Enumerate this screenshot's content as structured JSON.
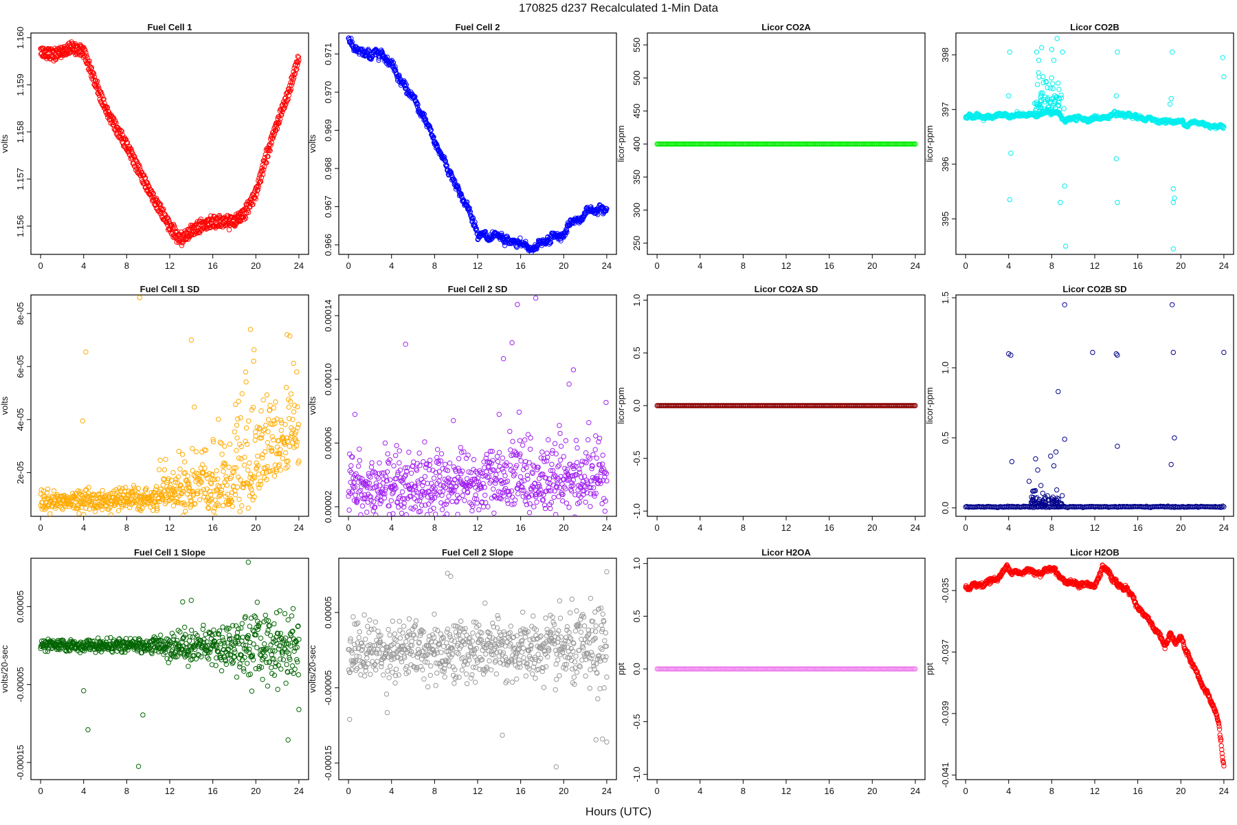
{
  "figure": {
    "title": "170825   d237   Recalculated 1-Min Data",
    "xlabel": "Hours (UTC)"
  },
  "chart_data": [
    {
      "id": "fc1",
      "type": "scatter",
      "title": "Fuel Cell 1",
      "ylabel": "volts",
      "color": "#ff0000",
      "ylim": [
        1.1554,
        1.1601
      ],
      "yticks": [
        1.156,
        1.157,
        1.158,
        1.159,
        1.16
      ],
      "ytick_labels": [
        "1.156",
        "1.157",
        "1.158",
        "1.159",
        "1.160"
      ],
      "shape": "band",
      "band_gap": 0.00015,
      "noise": 3e-05,
      "density": 1,
      "x": [
        0,
        1,
        2,
        3,
        4,
        6,
        8,
        10,
        12,
        13,
        14,
        16,
        17,
        18,
        19,
        20,
        21,
        22,
        23,
        24
      ],
      "y": [
        1.1597,
        1.15965,
        1.1597,
        1.1598,
        1.1597,
        1.1585,
        1.1577,
        1.1568,
        1.156,
        1.1557,
        1.1559,
        1.1561,
        1.1561,
        1.1561,
        1.1563,
        1.1567,
        1.1575,
        1.1582,
        1.1588,
        1.1596
      ]
    },
    {
      "id": "fc2",
      "type": "scatter",
      "title": "Fuel Cell 2",
      "ylabel": "volts",
      "color": "#0000ff",
      "ylim": [
        0.96575,
        0.97155
      ],
      "yticks": [
        0.966,
        0.967,
        0.968,
        0.969,
        0.97,
        0.971
      ],
      "ytick_labels": [
        "0.966",
        "0.967",
        "0.968",
        "0.969",
        "0.970",
        "0.971"
      ],
      "shape": "line",
      "noise": 6e-05,
      "density": 1,
      "x": [
        0,
        1,
        2,
        3,
        4,
        6,
        8,
        10,
        12,
        13,
        14,
        16,
        17,
        18,
        20,
        21,
        22,
        23,
        24
      ],
      "y": [
        0.9714,
        0.971,
        0.97095,
        0.9711,
        0.9708,
        0.9698,
        0.9687,
        0.9676,
        0.9664,
        0.9661,
        0.9661,
        0.966,
        0.9659,
        0.9661,
        0.9663,
        0.9666,
        0.9668,
        0.967,
        0.9671
      ]
    },
    {
      "id": "co2a",
      "type": "scatter",
      "title": "Licor CO2A",
      "ylabel": "licor-ppm",
      "color": "#00ee00",
      "ylim": [
        233,
        568
      ],
      "yticks": [
        250,
        300,
        350,
        400,
        450,
        500,
        550
      ],
      "ytick_labels": [
        "250",
        "300",
        "350",
        "400",
        "450",
        "500",
        "550"
      ],
      "shape": "flat",
      "noise": 0,
      "density": 2,
      "x": [
        0,
        24
      ],
      "y": [
        400,
        400
      ]
    },
    {
      "id": "co2b",
      "type": "scatter",
      "title": "Licor CO2B",
      "ylabel": "licor-ppm",
      "color": "#00eeee",
      "ylim": [
        394.35,
        398.4
      ],
      "yticks": [
        395,
        396,
        397,
        398
      ],
      "ytick_labels": [
        "395",
        "396",
        "397",
        "398"
      ],
      "shape": "line",
      "noise": 0.02,
      "density": 1,
      "x": [
        0,
        4,
        6,
        7,
        8,
        8.8,
        9,
        12,
        14,
        16,
        18,
        20,
        22,
        24
      ],
      "y": [
        396.87,
        396.88,
        396.9,
        396.95,
        396.93,
        396.9,
        396.82,
        396.84,
        396.88,
        396.84,
        396.8,
        396.77,
        396.74,
        396.7
      ],
      "outliers": {
        "x": [
          4.1,
          4.1,
          4.2,
          4.0,
          6.6,
          6.8,
          7.0,
          7.2,
          7.5,
          8.0,
          8.2,
          8.5,
          8.7,
          8.8,
          9.0,
          9.2,
          9.3,
          14.1,
          14.0,
          14.1,
          14.0,
          19.2,
          19.3,
          19.1,
          19.3,
          19.0,
          19.3,
          19.4,
          23.9,
          24.0
        ],
        "y": [
          398.05,
          395.35,
          396.2,
          397.25,
          398.05,
          397.9,
          397.3,
          397.6,
          397.5,
          398.1,
          397.9,
          398.3,
          397.2,
          395.3,
          398.05,
          395.6,
          394.5,
          398.05,
          397.25,
          395.3,
          396.1,
          398.05,
          395.3,
          397.2,
          394.45,
          397.1,
          395.55,
          395.38,
          397.95,
          397.6
        ]
      },
      "cluster": {
        "x0": 6.4,
        "x1": 9.2,
        "spread": 0.7,
        "count": 70
      }
    },
    {
      "id": "fc1sd",
      "type": "scatter",
      "title": "Fuel Cell 1 SD",
      "ylabel": "volts",
      "color": "#ffaa00",
      "ylim": [
        3.5e-06,
        8.7e-05
      ],
      "yticks": [
        2e-05,
        4e-05,
        6e-05,
        8e-05
      ],
      "ytick_labels": [
        "2e-05",
        "4e-05",
        "6e-05",
        "8e-05"
      ],
      "shape": "noise",
      "noise": 1.8e-06,
      "density": 1,
      "skew": true,
      "x": [
        0,
        4,
        8,
        12,
        16,
        18,
        19,
        20,
        22,
        24
      ],
      "y": [
        8.5e-06,
        8.5e-06,
        9e-06,
        9e-06,
        9.5e-06,
        1.1e-05,
        1.3e-05,
        1.8e-05,
        2.5e-05,
        2.8e-05
      ],
      "spread": {
        "x": [
          0,
          10,
          12,
          16,
          18,
          19,
          20,
          22,
          24
        ],
        "y": [
          1e-06,
          2e-06,
          9e-06,
          1.4e-05,
          2e-05,
          2.6e-05,
          1.8e-05,
          1.6e-05,
          1.8e-05
        ]
      },
      "outliers": {
        "x": [
          4.2,
          3.9,
          9.2,
          14.0,
          19.5,
          22.9,
          19.8
        ],
        "y": [
          6.55e-05,
          3.95e-05,
          8.6e-05,
          7e-05,
          7.4e-05,
          7.2e-05,
          6.2e-05
        ]
      }
    },
    {
      "id": "fc2sd",
      "type": "scatter",
      "title": "Fuel Cell 2 SD",
      "ylabel": "volts",
      "color": "#a020f0",
      "ylim": [
        1.4e-05,
        0.000153
      ],
      "yticks": [
        2e-05,
        6e-05,
        0.0001,
        0.00014
      ],
      "ytick_labels": [
        "0.00002",
        "0.00006",
        "0.00010",
        "0.00014"
      ],
      "shape": "noise",
      "noise": 7e-06,
      "density": 1,
      "skew": true,
      "x": [
        0,
        12,
        18,
        24
      ],
      "y": [
        2.7e-05,
        2.9e-05,
        3e-05,
        3.2e-05
      ],
      "spread": {
        "x": [
          0,
          24
        ],
        "y": [
          1.2e-05,
          1.6e-05
        ]
      },
      "outliers": {
        "x": [
          5.3,
          15.7,
          17.4,
          14.4,
          15.2,
          20.5,
          20.9,
          14.0,
          0.6
        ],
        "y": [
          0.000122,
          0.000147,
          0.000151,
          0.000113,
          0.000123,
          9.7e-05,
          0.000106,
          7.8e-05,
          7.8e-05
        ]
      }
    },
    {
      "id": "co2asd",
      "type": "scatter",
      "title": "Licor CO2A SD",
      "ylabel": "licor-ppm",
      "color": "#8b0000",
      "ylim": [
        -1.05,
        1.05
      ],
      "yticks": [
        -1.0,
        -0.5,
        0.0,
        0.5,
        1.0
      ],
      "ytick_labels": [
        "-1.0",
        "-0.5",
        "0.0",
        "0.5",
        "1.0"
      ],
      "shape": "flat",
      "noise": 0,
      "density": 2,
      "x": [
        0,
        24
      ],
      "y": [
        0,
        0
      ]
    },
    {
      "id": "co2bsd",
      "type": "scatter",
      "title": "Licor CO2B SD",
      "ylabel": "licor-ppm",
      "color": "#00008b",
      "ylim": [
        -0.06,
        1.52
      ],
      "yticks": [
        0.0,
        0.5,
        1.0,
        1.5
      ],
      "ytick_labels": [
        "0.0",
        "0.5",
        "1.0",
        "1.5"
      ],
      "shape": "flat",
      "noise": 0.002,
      "density": 1,
      "x": [
        0,
        24
      ],
      "y": [
        0.008,
        0.008
      ],
      "outliers": {
        "x": [
          4.0,
          4.2,
          9.2,
          11.8,
          14.0,
          14.1,
          19.2,
          19.3,
          24.0,
          8.6,
          9.2,
          7.9,
          8.4,
          4.3,
          5.9,
          6.5,
          6.7,
          14.1,
          19.1,
          19.4,
          8.2,
          7.0,
          6.3
        ],
        "y": [
          1.1,
          1.09,
          1.45,
          1.11,
          1.1,
          1.09,
          1.45,
          1.11,
          1.11,
          0.83,
          0.49,
          0.37,
          0.4,
          0.33,
          0.19,
          0.35,
          0.27,
          0.44,
          0.31,
          0.5,
          0.3,
          0.16,
          0.12
        ]
      },
      "cluster": {
        "x0": 6.0,
        "x1": 9.0,
        "spread": 0.1,
        "count": 70
      }
    },
    {
      "id": "fc1slope",
      "type": "scatter",
      "title": "Fuel Cell 1 Slope",
      "ylabel": "volts/20-sec",
      "color": "#006400",
      "ylim": [
        -0.000172,
        0.000112
      ],
      "yticks": [
        -0.00015,
        -5e-05,
        5e-05
      ],
      "ytick_labels": [
        "-0.00015",
        "-0.00005",
        "0.00005"
      ],
      "shape": "noise",
      "noise": 7e-06,
      "density": 1,
      "x": [
        0,
        24
      ],
      "y": [
        0,
        0
      ],
      "spread": {
        "x": [
          0,
          10,
          12,
          16,
          18,
          20,
          24
        ],
        "y": [
          5e-06,
          6e-06,
          1.4e-05,
          1.6e-05,
          2.5e-05,
          3.2e-05,
          3.2e-05
        ]
      },
      "outliers": {
        "x": [
          4.4,
          4.0,
          9.1,
          9.5,
          19.3,
          14.0,
          23.0,
          24.0,
          13.2
        ],
        "y": [
          -0.000108,
          -5.8e-05,
          -0.000155,
          -8.9e-05,
          0.000107,
          5.8e-05,
          -0.000121,
          -8.2e-05,
          5.6e-05
        ]
      }
    },
    {
      "id": "fc2slope",
      "type": "scatter",
      "title": "Fuel Cell 2 Slope",
      "ylabel": "volts/20-sec",
      "color": "#999999",
      "ylim": [
        -0.000172,
        0.000122
      ],
      "yticks": [
        -0.00015,
        -5e-05,
        5e-05
      ],
      "ytick_labels": [
        "-0.00015",
        "-0.00005",
        "0.00005"
      ],
      "shape": "noise",
      "noise": 2.2e-05,
      "density": 1,
      "x": [
        0,
        24
      ],
      "y": [
        0,
        0
      ],
      "spread": {
        "x": [
          0,
          18,
          24
        ],
        "y": [
          2.8e-05,
          3e-05,
          4e-05
        ]
      },
      "outliers": {
        "x": [
          0.1,
          9.2,
          14.3,
          19.3,
          23.6,
          24.0,
          23.0,
          24.0,
          3.6,
          9.5
        ],
        "y": [
          -9.2e-05,
          0.000102,
          -0.000113,
          -0.000155,
          -0.000118,
          -0.000122,
          -0.000119,
          0.000104,
          -8.3e-05,
          9.8e-05
        ]
      }
    },
    {
      "id": "h2oa",
      "type": "scatter",
      "title": "Licor H2OA",
      "ylabel": "ppt",
      "color": "#ee82ee",
      "ylim": [
        -1.05,
        1.05
      ],
      "yticks": [
        -1.0,
        -0.5,
        0.0,
        0.5,
        1.0
      ],
      "ytick_labels": [
        "-1.0",
        "-0.5",
        "0.0",
        "0.5",
        "1.0"
      ],
      "shape": "flat",
      "noise": 0,
      "density": 2,
      "x": [
        0,
        24
      ],
      "y": [
        0,
        0
      ]
    },
    {
      "id": "h2ob",
      "type": "scatter",
      "title": "Licor H2OB",
      "ylabel": "ppt",
      "color": "#ff0000",
      "ylim": [
        -0.04115,
        -0.03395
      ],
      "yticks": [
        -0.041,
        -0.039,
        -0.037,
        -0.035
      ],
      "ytick_labels": [
        "-0.041",
        "-0.039",
        "-0.037",
        "-0.035"
      ],
      "shape": "line",
      "noise": 5e-05,
      "density": 1,
      "x": [
        0,
        1,
        2,
        3,
        4,
        5,
        6,
        7,
        8,
        9,
        10,
        11,
        12,
        12.7,
        13,
        14,
        15,
        16,
        17,
        18,
        18.5,
        19,
        19.5,
        20,
        21,
        22,
        23,
        23.5,
        24
      ],
      "y": [
        -0.0349,
        -0.03485,
        -0.0347,
        -0.0346,
        -0.0342,
        -0.0345,
        -0.0343,
        -0.0344,
        -0.0342,
        -0.0346,
        -0.0348,
        -0.0348,
        -0.0349,
        -0.0343,
        -0.0343,
        -0.0348,
        -0.0349,
        -0.0355,
        -0.036,
        -0.0365,
        -0.0369,
        -0.0363,
        -0.0368,
        -0.0365,
        -0.0375,
        -0.0381,
        -0.0387,
        -0.0393,
        -0.0408
      ]
    }
  ],
  "xaxis": {
    "lim": [
      -0.9,
      24.9
    ],
    "ticks": [
      0,
      4,
      8,
      12,
      16,
      20,
      24
    ],
    "tick_labels": [
      "0",
      "4",
      "8",
      "12",
      "16",
      "20",
      "24"
    ]
  }
}
